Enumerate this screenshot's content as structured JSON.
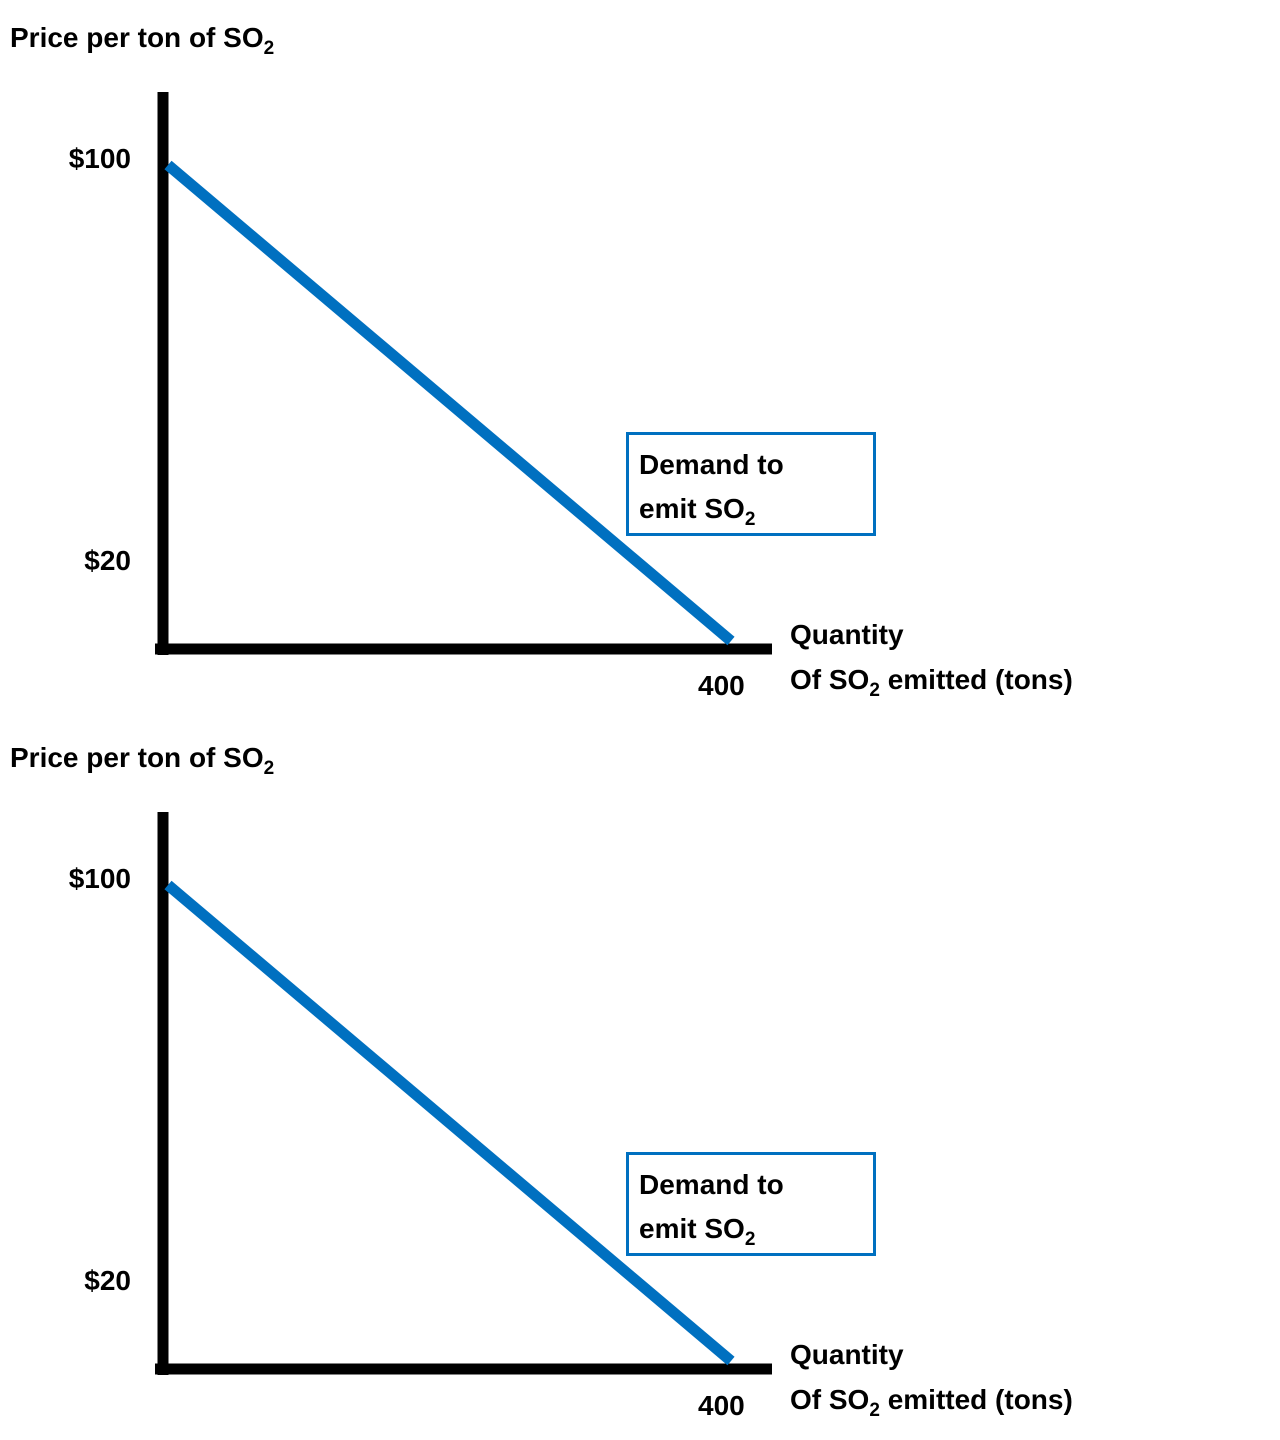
{
  "chart_data": [
    {
      "type": "line",
      "ylabel": {
        "text": "Price per ton of SO",
        "sub": "2"
      },
      "xlabel": {
        "line1": "Quantity",
        "prefix": "Of SO",
        "sub": "2",
        "suffix": " emitted (tons)"
      },
      "ytick_labels": [
        {
          "value": 100,
          "label": "$100"
        },
        {
          "value": 20,
          "label": "$20"
        }
      ],
      "xtick_labels": [
        {
          "value": 400,
          "label": "400"
        }
      ],
      "series": [
        {
          "points": [
            [
              0,
              100
            ],
            [
              400,
              0
            ]
          ],
          "color": "#0070c0"
        }
      ],
      "annotation": {
        "line1": "Demand to",
        "line2": "emit SO",
        "sub": "2",
        "border_color": "#0070c0"
      },
      "grid": false
    },
    {
      "type": "line",
      "ylabel": {
        "text": "Price per ton of SO",
        "sub": "2"
      },
      "xlabel": {
        "line1": "Quantity",
        "prefix": "Of SO",
        "sub": "2",
        "suffix": " emitted (tons)"
      },
      "ytick_labels": [
        {
          "value": 100,
          "label": "$100"
        },
        {
          "value": 20,
          "label": "$20"
        }
      ],
      "xtick_labels": [
        {
          "value": 400,
          "label": "400"
        }
      ],
      "series": [
        {
          "points": [
            [
              0,
              100
            ],
            [
              400,
              0
            ]
          ],
          "color": "#0070c0"
        }
      ],
      "annotation": {
        "line1": "Demand to",
        "line2": "emit SO",
        "sub": "2",
        "border_color": "#0070c0"
      },
      "grid": false
    }
  ]
}
